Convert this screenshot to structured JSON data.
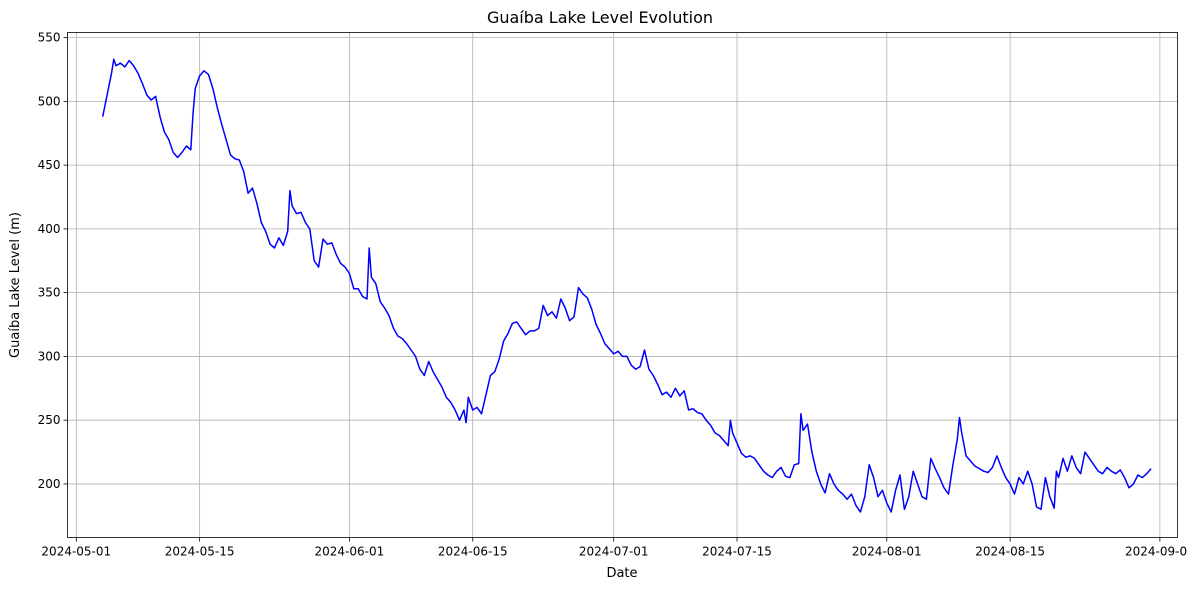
{
  "chart_data": {
    "type": "line",
    "title": "Guaíba Lake Level Evolution",
    "xlabel": "Date",
    "ylabel": "Guaíba Lake Level (m)",
    "x_axis": "date",
    "xlim": [
      "2024-04-30",
      "2024-09-03"
    ],
    "ylim": [
      158,
      554
    ],
    "x_ticks": [
      "2024-05-01",
      "2024-05-15",
      "2024-06-01",
      "2024-06-15",
      "2024-07-01",
      "2024-07-15",
      "2024-08-01",
      "2024-08-15",
      "2024-09-01"
    ],
    "y_ticks": [
      200,
      250,
      300,
      350,
      400,
      450,
      500,
      550
    ],
    "grid": true,
    "legend": "none",
    "series": [
      {
        "color": "#0000ff",
        "points": [
          [
            "2024-05-04",
            488
          ],
          [
            "2024-05-04T12:00",
            505
          ],
          [
            "2024-05-05",
            522
          ],
          [
            "2024-05-05T06:00",
            533
          ],
          [
            "2024-05-05T12:00",
            528
          ],
          [
            "2024-05-06",
            530
          ],
          [
            "2024-05-06T12:00",
            527
          ],
          [
            "2024-05-07",
            532
          ],
          [
            "2024-05-07T12:00",
            528
          ],
          [
            "2024-05-08",
            522
          ],
          [
            "2024-05-08T12:00",
            514
          ],
          [
            "2024-05-09",
            505
          ],
          [
            "2024-05-09T12:00",
            501
          ],
          [
            "2024-05-10",
            504
          ],
          [
            "2024-05-10T12:00",
            488
          ],
          [
            "2024-05-11",
            476
          ],
          [
            "2024-05-11T12:00",
            470
          ],
          [
            "2024-05-12",
            460
          ],
          [
            "2024-05-12T12:00",
            456
          ],
          [
            "2024-05-13",
            460
          ],
          [
            "2024-05-13T12:00",
            465
          ],
          [
            "2024-05-14",
            462
          ],
          [
            "2024-05-14T06:00",
            490
          ],
          [
            "2024-05-14T12:00",
            510
          ],
          [
            "2024-05-15",
            520
          ],
          [
            "2024-05-15T12:00",
            524
          ],
          [
            "2024-05-16",
            521
          ],
          [
            "2024-05-16T12:00",
            510
          ],
          [
            "2024-05-17",
            495
          ],
          [
            "2024-05-17T12:00",
            482
          ],
          [
            "2024-05-18",
            470
          ],
          [
            "2024-05-18T12:00",
            458
          ],
          [
            "2024-05-19",
            455
          ],
          [
            "2024-05-19T12:00",
            454
          ],
          [
            "2024-05-20",
            445
          ],
          [
            "2024-05-20T12:00",
            428
          ],
          [
            "2024-05-21",
            432
          ],
          [
            "2024-05-21T12:00",
            420
          ],
          [
            "2024-05-22",
            405
          ],
          [
            "2024-05-22T12:00",
            398
          ],
          [
            "2024-05-23",
            388
          ],
          [
            "2024-05-23T12:00",
            385
          ],
          [
            "2024-05-24",
            393
          ],
          [
            "2024-05-24T12:00",
            387
          ],
          [
            "2024-05-25",
            398
          ],
          [
            "2024-05-25T06:00",
            430
          ],
          [
            "2024-05-25T12:00",
            418
          ],
          [
            "2024-05-26",
            412
          ],
          [
            "2024-05-26T12:00",
            413
          ],
          [
            "2024-05-27",
            405
          ],
          [
            "2024-05-27T12:00",
            400
          ],
          [
            "2024-05-28",
            375
          ],
          [
            "2024-05-28T12:00",
            370
          ],
          [
            "2024-05-29",
            392
          ],
          [
            "2024-05-29T12:00",
            388
          ],
          [
            "2024-05-30",
            389
          ],
          [
            "2024-05-30T12:00",
            380
          ],
          [
            "2024-05-31",
            373
          ],
          [
            "2024-05-31T12:00",
            370
          ],
          [
            "2024-06-01",
            365
          ],
          [
            "2024-06-01T12:00",
            353
          ],
          [
            "2024-06-02",
            353
          ],
          [
            "2024-06-02T12:00",
            347
          ],
          [
            "2024-06-03",
            345
          ],
          [
            "2024-06-03T06:00",
            385
          ],
          [
            "2024-06-03T12:00",
            362
          ],
          [
            "2024-06-04",
            357
          ],
          [
            "2024-06-04T12:00",
            343
          ],
          [
            "2024-06-05",
            338
          ],
          [
            "2024-06-05T12:00",
            332
          ],
          [
            "2024-06-06",
            322
          ],
          [
            "2024-06-06T12:00",
            316
          ],
          [
            "2024-06-07",
            314
          ],
          [
            "2024-06-07T12:00",
            310
          ],
          [
            "2024-06-08",
            305
          ],
          [
            "2024-06-08T12:00",
            300
          ],
          [
            "2024-06-09",
            290
          ],
          [
            "2024-06-09T12:00",
            285
          ],
          [
            "2024-06-10",
            296
          ],
          [
            "2024-06-10T12:00",
            288
          ],
          [
            "2024-06-11",
            282
          ],
          [
            "2024-06-11T12:00",
            276
          ],
          [
            "2024-06-12",
            268
          ],
          [
            "2024-06-12T12:00",
            264
          ],
          [
            "2024-06-13",
            258
          ],
          [
            "2024-06-13T12:00",
            250
          ],
          [
            "2024-06-14",
            258
          ],
          [
            "2024-06-14T06:00",
            248
          ],
          [
            "2024-06-14T12:00",
            268
          ],
          [
            "2024-06-15",
            258
          ],
          [
            "2024-06-15T12:00",
            260
          ],
          [
            "2024-06-16",
            255
          ],
          [
            "2024-06-16T12:00",
            270
          ],
          [
            "2024-06-17",
            285
          ],
          [
            "2024-06-17T12:00",
            288
          ],
          [
            "2024-06-18",
            298
          ],
          [
            "2024-06-18T12:00",
            312
          ],
          [
            "2024-06-19",
            318
          ],
          [
            "2024-06-19T12:00",
            326
          ],
          [
            "2024-06-20",
            327
          ],
          [
            "2024-06-20T12:00",
            322
          ],
          [
            "2024-06-21",
            317
          ],
          [
            "2024-06-21T12:00",
            320
          ],
          [
            "2024-06-22",
            320
          ],
          [
            "2024-06-22T12:00",
            322
          ],
          [
            "2024-06-23",
            340
          ],
          [
            "2024-06-23T12:00",
            332
          ],
          [
            "2024-06-24",
            335
          ],
          [
            "2024-06-24T12:00",
            330
          ],
          [
            "2024-06-25",
            345
          ],
          [
            "2024-06-25T12:00",
            338
          ],
          [
            "2024-06-26",
            328
          ],
          [
            "2024-06-26T12:00",
            331
          ],
          [
            "2024-06-27",
            354
          ],
          [
            "2024-06-27T12:00",
            349
          ],
          [
            "2024-06-28",
            346
          ],
          [
            "2024-06-28T12:00",
            337
          ],
          [
            "2024-06-29",
            325
          ],
          [
            "2024-06-29T12:00",
            318
          ],
          [
            "2024-06-30",
            310
          ],
          [
            "2024-06-30T12:00",
            306
          ],
          [
            "2024-07-01",
            302
          ],
          [
            "2024-07-01T12:00",
            304
          ],
          [
            "2024-07-02",
            300
          ],
          [
            "2024-07-02T12:00",
            300
          ],
          [
            "2024-07-03",
            293
          ],
          [
            "2024-07-03T12:00",
            290
          ],
          [
            "2024-07-04",
            292
          ],
          [
            "2024-07-04T12:00",
            305
          ],
          [
            "2024-07-05",
            290
          ],
          [
            "2024-07-05T12:00",
            285
          ],
          [
            "2024-07-06",
            278
          ],
          [
            "2024-07-06T12:00",
            270
          ],
          [
            "2024-07-07",
            272
          ],
          [
            "2024-07-07T12:00",
            268
          ],
          [
            "2024-07-08",
            275
          ],
          [
            "2024-07-08T12:00",
            269
          ],
          [
            "2024-07-09",
            273
          ],
          [
            "2024-07-09T12:00",
            258
          ],
          [
            "2024-07-10",
            259
          ],
          [
            "2024-07-10T12:00",
            256
          ],
          [
            "2024-07-11",
            255
          ],
          [
            "2024-07-11T12:00",
            250
          ],
          [
            "2024-07-12",
            246
          ],
          [
            "2024-07-12T12:00",
            240
          ],
          [
            "2024-07-13",
            238
          ],
          [
            "2024-07-13T12:00",
            234
          ],
          [
            "2024-07-14",
            230
          ],
          [
            "2024-07-14T06:00",
            250
          ],
          [
            "2024-07-14T12:00",
            240
          ],
          [
            "2024-07-15",
            232
          ],
          [
            "2024-07-15T12:00",
            224
          ],
          [
            "2024-07-16",
            221
          ],
          [
            "2024-07-16T12:00",
            222
          ],
          [
            "2024-07-17",
            220
          ],
          [
            "2024-07-17T12:00",
            215
          ],
          [
            "2024-07-18",
            210
          ],
          [
            "2024-07-18T12:00",
            207
          ],
          [
            "2024-07-19",
            205
          ],
          [
            "2024-07-19T12:00",
            210
          ],
          [
            "2024-07-20",
            213
          ],
          [
            "2024-07-20T12:00",
            206
          ],
          [
            "2024-07-21",
            205
          ],
          [
            "2024-07-21T12:00",
            215
          ],
          [
            "2024-07-22",
            216
          ],
          [
            "2024-07-22T06:00",
            255
          ],
          [
            "2024-07-22T12:00",
            242
          ],
          [
            "2024-07-23",
            247
          ],
          [
            "2024-07-23T12:00",
            225
          ],
          [
            "2024-07-24",
            210
          ],
          [
            "2024-07-24T12:00",
            200
          ],
          [
            "2024-07-25",
            193
          ],
          [
            "2024-07-25T12:00",
            208
          ],
          [
            "2024-07-26",
            200
          ],
          [
            "2024-07-26T12:00",
            195
          ],
          [
            "2024-07-27",
            192
          ],
          [
            "2024-07-27T12:00",
            188
          ],
          [
            "2024-07-28",
            192
          ],
          [
            "2024-07-28T12:00",
            183
          ],
          [
            "2024-07-29",
            178
          ],
          [
            "2024-07-29T12:00",
            190
          ],
          [
            "2024-07-30",
            215
          ],
          [
            "2024-07-30T12:00",
            205
          ],
          [
            "2024-07-31",
            190
          ],
          [
            "2024-07-31T12:00",
            195
          ],
          [
            "2024-08-01",
            185
          ],
          [
            "2024-08-01T12:00",
            178
          ],
          [
            "2024-08-02",
            195
          ],
          [
            "2024-08-02T12:00",
            207
          ],
          [
            "2024-08-03",
            180
          ],
          [
            "2024-08-03T12:00",
            190
          ],
          [
            "2024-08-04",
            210
          ],
          [
            "2024-08-04T12:00",
            200
          ],
          [
            "2024-08-05",
            190
          ],
          [
            "2024-08-05T12:00",
            188
          ],
          [
            "2024-08-06",
            220
          ],
          [
            "2024-08-06T12:00",
            212
          ],
          [
            "2024-08-07",
            205
          ],
          [
            "2024-08-07T12:00",
            197
          ],
          [
            "2024-08-08",
            192
          ],
          [
            "2024-08-08T12:00",
            215
          ],
          [
            "2024-08-09",
            235
          ],
          [
            "2024-08-09T06:00",
            252
          ],
          [
            "2024-08-09T12:00",
            240
          ],
          [
            "2024-08-10",
            222
          ],
          [
            "2024-08-10T12:00",
            218
          ],
          [
            "2024-08-11",
            214
          ],
          [
            "2024-08-11T12:00",
            212
          ],
          [
            "2024-08-12",
            210
          ],
          [
            "2024-08-12T12:00",
            209
          ],
          [
            "2024-08-13",
            213
          ],
          [
            "2024-08-13T12:00",
            222
          ],
          [
            "2024-08-14",
            213
          ],
          [
            "2024-08-14T12:00",
            205
          ],
          [
            "2024-08-15",
            200
          ],
          [
            "2024-08-15T12:00",
            192
          ],
          [
            "2024-08-16",
            205
          ],
          [
            "2024-08-16T12:00",
            200
          ],
          [
            "2024-08-17",
            210
          ],
          [
            "2024-08-17T12:00",
            200
          ],
          [
            "2024-08-18",
            182
          ],
          [
            "2024-08-18T12:00",
            180
          ],
          [
            "2024-08-19",
            205
          ],
          [
            "2024-08-19T12:00",
            190
          ],
          [
            "2024-08-20",
            181
          ],
          [
            "2024-08-20T06:00",
            210
          ],
          [
            "2024-08-20T12:00",
            205
          ],
          [
            "2024-08-21",
            220
          ],
          [
            "2024-08-21T12:00",
            210
          ],
          [
            "2024-08-22",
            222
          ],
          [
            "2024-08-22T12:00",
            213
          ],
          [
            "2024-08-23",
            208
          ],
          [
            "2024-08-23T12:00",
            225
          ],
          [
            "2024-08-24",
            220
          ],
          [
            "2024-08-24T12:00",
            215
          ],
          [
            "2024-08-25",
            210
          ],
          [
            "2024-08-25T12:00",
            208
          ],
          [
            "2024-08-26",
            213
          ],
          [
            "2024-08-26T12:00",
            210
          ],
          [
            "2024-08-27",
            208
          ],
          [
            "2024-08-27T12:00",
            211
          ],
          [
            "2024-08-28",
            205
          ],
          [
            "2024-08-28T12:00",
            197
          ],
          [
            "2024-08-29",
            200
          ],
          [
            "2024-08-29T12:00",
            207
          ],
          [
            "2024-08-30",
            205
          ],
          [
            "2024-08-30T12:00",
            208
          ],
          [
            "2024-08-31",
            212
          ]
        ]
      }
    ]
  }
}
